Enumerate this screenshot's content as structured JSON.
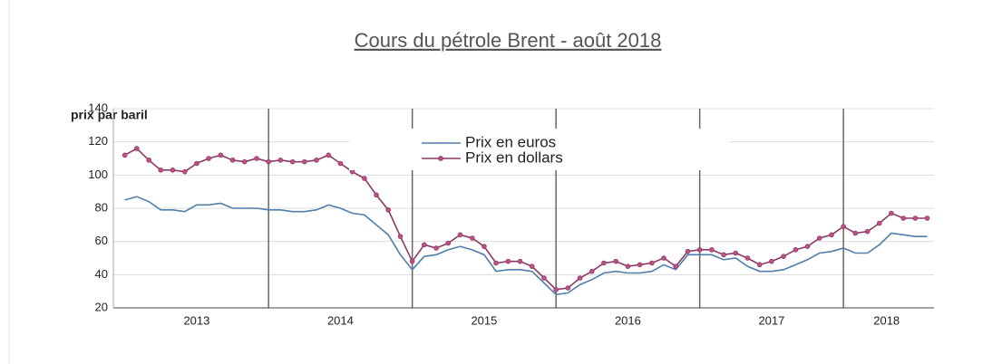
{
  "chart_data": {
    "type": "line",
    "title": "Cours du pétrole Brent - août 2018",
    "ylabel": "prix par baril",
    "xlim": [
      2012.92,
      2018.63
    ],
    "xticks": [
      {
        "value": 2013.5,
        "label": "2013"
      },
      {
        "value": 2014.5,
        "label": "2014"
      },
      {
        "value": 2015.5,
        "label": "2015"
      },
      {
        "value": 2016.5,
        "label": "2016"
      },
      {
        "value": 2017.5,
        "label": "2017"
      },
      {
        "value": 2018.3,
        "label": "2018"
      }
    ],
    "xseparators": [
      2014,
      2015,
      2016,
      2017,
      2018
    ],
    "ylim": [
      20,
      140
    ],
    "yticks": [
      20,
      40,
      60,
      80,
      100,
      120,
      140
    ],
    "grid": true,
    "x": [
      2013,
      2013.083,
      2013.167,
      2013.25,
      2013.333,
      2013.417,
      2013.5,
      2013.583,
      2013.667,
      2013.75,
      2013.833,
      2013.917,
      2014,
      2014.083,
      2014.167,
      2014.25,
      2014.333,
      2014.417,
      2014.5,
      2014.583,
      2014.667,
      2014.75,
      2014.833,
      2014.917,
      2015,
      2015.083,
      2015.167,
      2015.25,
      2015.333,
      2015.417,
      2015.5,
      2015.583,
      2015.667,
      2015.75,
      2015.833,
      2015.917,
      2016,
      2016.083,
      2016.167,
      2016.25,
      2016.333,
      2016.417,
      2016.5,
      2016.583,
      2016.667,
      2016.75,
      2016.833,
      2016.917,
      2017,
      2017.083,
      2017.167,
      2017.25,
      2017.333,
      2017.417,
      2017.5,
      2017.583,
      2017.667,
      2017.75,
      2017.833,
      2017.917,
      2018,
      2018.083,
      2018.167,
      2018.25,
      2018.333,
      2018.417,
      2018.5,
      2018.583
    ],
    "series": [
      {
        "name": "Prix en euros",
        "color": "#4f7fab",
        "marker": false,
        "values": [
          85,
          87,
          84,
          79,
          79,
          78,
          82,
          82,
          83,
          80,
          80,
          80,
          79,
          79,
          78,
          78,
          79,
          82,
          80,
          77,
          76,
          70,
          64,
          52,
          43,
          51,
          52,
          55,
          57,
          55,
          52,
          42,
          43,
          43,
          42,
          35,
          28,
          29,
          34,
          37,
          41,
          42,
          41,
          41,
          42,
          46,
          43,
          52,
          52,
          52,
          49,
          50,
          45,
          42,
          42,
          43,
          46,
          49,
          53,
          54,
          56,
          53,
          53,
          58,
          65,
          64,
          63,
          63
        ]
      },
      {
        "name": "Prix en dollars",
        "color": "#8b3a62",
        "marker": true,
        "values": [
          112,
          116,
          109,
          103,
          103,
          102,
          107,
          110,
          112,
          109,
          108,
          110,
          108,
          109,
          108,
          108,
          109,
          112,
          107,
          102,
          98,
          88,
          79,
          63,
          48,
          58,
          56,
          59,
          64,
          62,
          57,
          47,
          48,
          48,
          45,
          38,
          31,
          32,
          38,
          42,
          47,
          48,
          45,
          46,
          47,
          50,
          45,
          54,
          55,
          55,
          52,
          53,
          50,
          46,
          48,
          51,
          55,
          57,
          62,
          64,
          69,
          65,
          66,
          71,
          77,
          74,
          74,
          74
        ]
      }
    ]
  }
}
